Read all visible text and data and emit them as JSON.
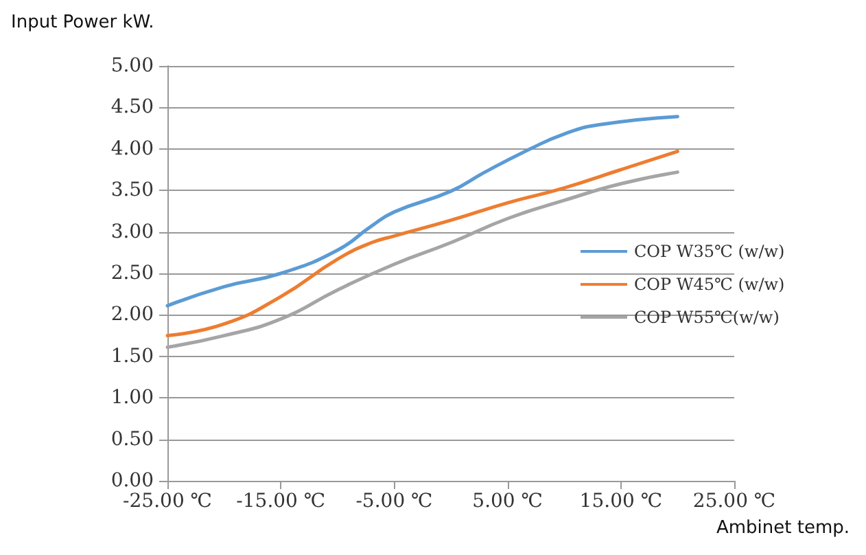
{
  "chart_data": {
    "type": "line",
    "ylabel": "Input Power kW.",
    "xlabel": "Ambinet temp.",
    "xlim": [
      -25,
      25
    ],
    "xticks": [
      {
        "value": -25,
        "label": "-25.00 ℃"
      },
      {
        "value": -15,
        "label": "-15.00 ℃"
      },
      {
        "value": -5,
        "label": "-5.00 ℃"
      },
      {
        "value": 5,
        "label": "5.00 ℃"
      },
      {
        "value": 15,
        "label": "15.00 ℃"
      },
      {
        "value": 25,
        "label": "25.00 ℃"
      }
    ],
    "ylim": [
      0,
      5
    ],
    "yticks": [
      {
        "value": 0,
        "label": "0.00"
      },
      {
        "value": 0.5,
        "label": "0.50"
      },
      {
        "value": 1,
        "label": "1.00"
      },
      {
        "value": 1.5,
        "label": "1.50"
      },
      {
        "value": 2,
        "label": "2.00"
      },
      {
        "value": 2.5,
        "label": "2.50"
      },
      {
        "value": 3,
        "label": "3.00"
      },
      {
        "value": 3.5,
        "label": "3.50"
      },
      {
        "value": 4,
        "label": "4.00"
      },
      {
        "value": 4.5,
        "label": "4.50"
      },
      {
        "value": 5,
        "label": "5.00"
      }
    ],
    "grid": "y",
    "legend": "right",
    "line_style": "solid",
    "marker": "none",
    "series": [
      {
        "name": "COP W35℃ (w/w)",
        "color": "#5b9bd5",
        "x": [
          -25,
          -20,
          -15,
          -10,
          -7,
          -5,
          0,
          3,
          7,
          10,
          13,
          20
        ],
        "values": [
          2.11,
          2.34,
          2.5,
          2.78,
          3.07,
          3.24,
          3.49,
          3.72,
          4.0,
          4.18,
          4.29,
          4.39
        ]
      },
      {
        "name": "COP W45℃ (w/w)",
        "color": "#ed7d31",
        "x": [
          -25,
          -20,
          -15,
          -10,
          -7,
          -5,
          0,
          5,
          10,
          15,
          20
        ],
        "values": [
          1.75,
          1.89,
          2.22,
          2.67,
          2.87,
          2.95,
          3.14,
          3.35,
          3.53,
          3.75,
          3.97
        ]
      },
      {
        "name": "COP W55℃(w/w)",
        "color": "#a5a5a5",
        "x": [
          -25,
          -20,
          -15,
          -10,
          -5,
          0,
          5,
          10,
          15,
          20
        ],
        "values": [
          1.61,
          1.75,
          1.95,
          2.3,
          2.61,
          2.87,
          3.16,
          3.38,
          3.58,
          3.72
        ]
      }
    ]
  }
}
